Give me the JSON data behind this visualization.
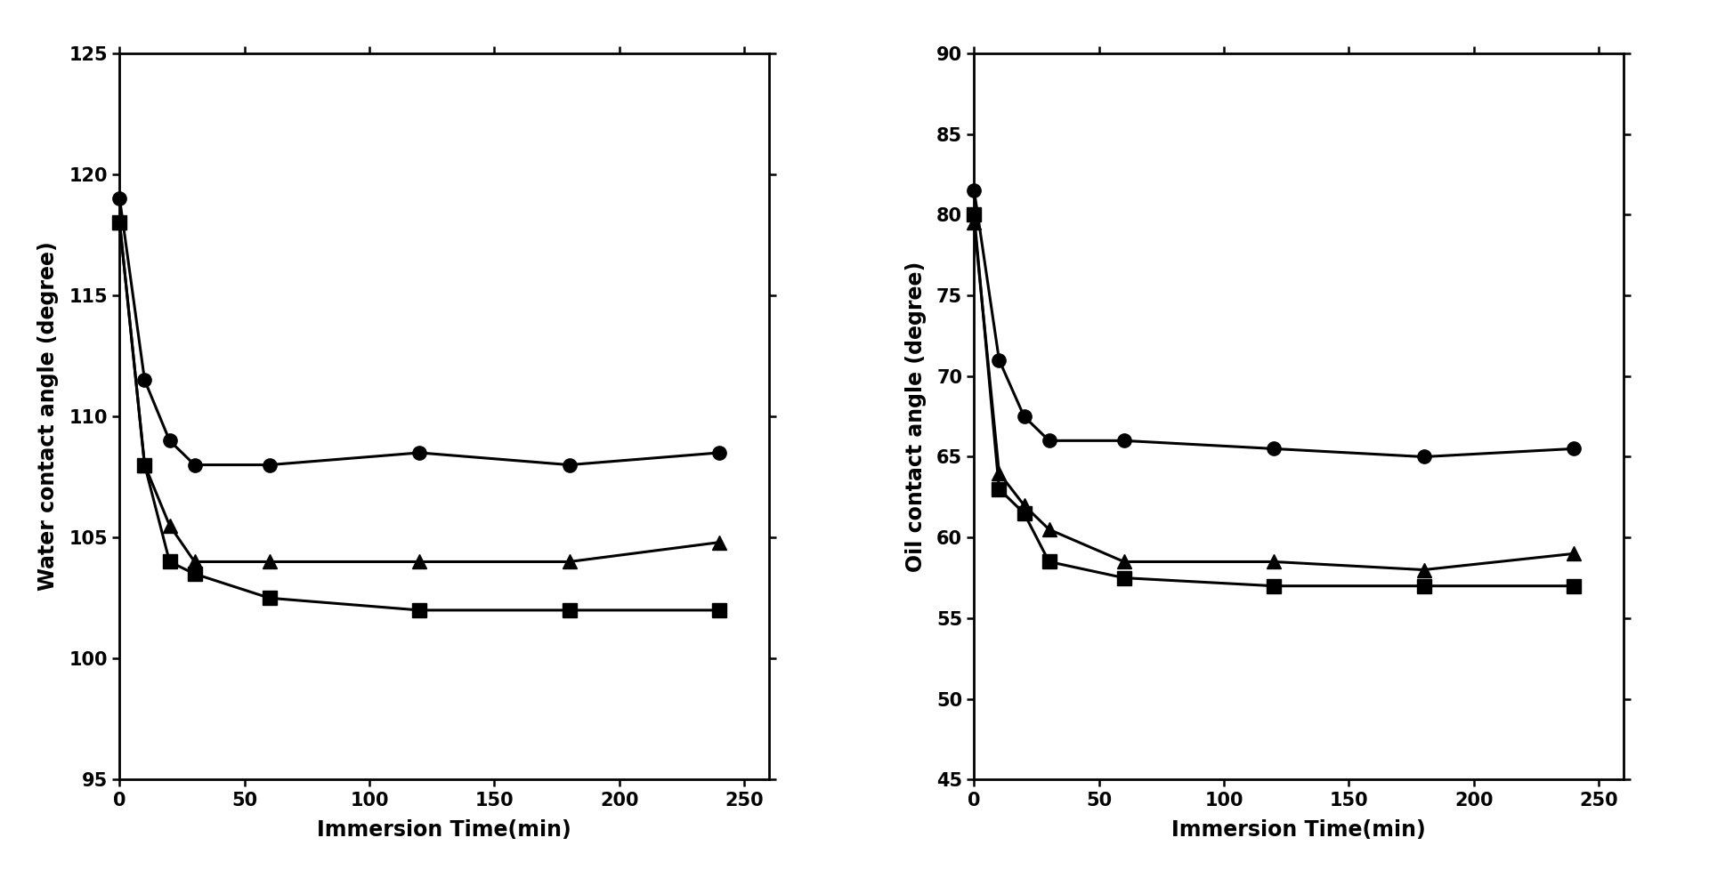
{
  "left_plot": {
    "title": "",
    "xlabel": "Immersion Time(min)",
    "ylabel": "Water contact angle (degree)",
    "xlim": [
      0,
      260
    ],
    "ylim": [
      95,
      125
    ],
    "yticks": [
      95,
      100,
      105,
      110,
      115,
      120,
      125
    ],
    "xticks": [
      0,
      50,
      100,
      150,
      200,
      250
    ],
    "series": {
      "circle": {
        "x": [
          0,
          10,
          20,
          30,
          60,
          120,
          180,
          240
        ],
        "y": [
          119,
          111.5,
          109,
          108,
          108,
          108.5,
          108,
          108.5
        ],
        "marker": "o"
      },
      "triangle": {
        "x": [
          0,
          10,
          20,
          30,
          60,
          120,
          180,
          240
        ],
        "y": [
          118,
          108,
          105.5,
          104,
          104,
          104,
          104,
          104.8
        ],
        "marker": "^"
      },
      "square": {
        "x": [
          0,
          10,
          20,
          30,
          60,
          120,
          180,
          240
        ],
        "y": [
          118,
          108,
          104,
          103.5,
          102.5,
          102,
          102,
          102
        ],
        "marker": "s"
      }
    }
  },
  "right_plot": {
    "title": "",
    "xlabel": "Immersion Time(min)",
    "ylabel": "Oil contact angle (degree)",
    "xlim": [
      0,
      260
    ],
    "ylim": [
      45,
      90
    ],
    "yticks": [
      45,
      50,
      55,
      60,
      65,
      70,
      75,
      80,
      85,
      90
    ],
    "xticks": [
      0,
      50,
      100,
      150,
      200,
      250
    ],
    "series": {
      "circle": {
        "x": [
          0,
          10,
          20,
          30,
          60,
          120,
          180,
          240
        ],
        "y": [
          81.5,
          71,
          67.5,
          66,
          66,
          65.5,
          65,
          65.5
        ],
        "marker": "o"
      },
      "triangle": {
        "x": [
          0,
          10,
          20,
          30,
          60,
          120,
          180,
          240
        ],
        "y": [
          79.5,
          64,
          62,
          60.5,
          58.5,
          58.5,
          58,
          59
        ],
        "marker": "^"
      },
      "square": {
        "x": [
          0,
          10,
          20,
          30,
          60,
          120,
          180,
          240
        ],
        "y": [
          80,
          63,
          61.5,
          58.5,
          57.5,
          57,
          57,
          57
        ],
        "marker": "s"
      }
    }
  },
  "line_color": "#000000",
  "marker_color": "#000000",
  "linewidth": 2.2,
  "markersize": 11,
  "fontsize_label": 17,
  "fontsize_tick": 15,
  "spine_linewidth": 2.0
}
